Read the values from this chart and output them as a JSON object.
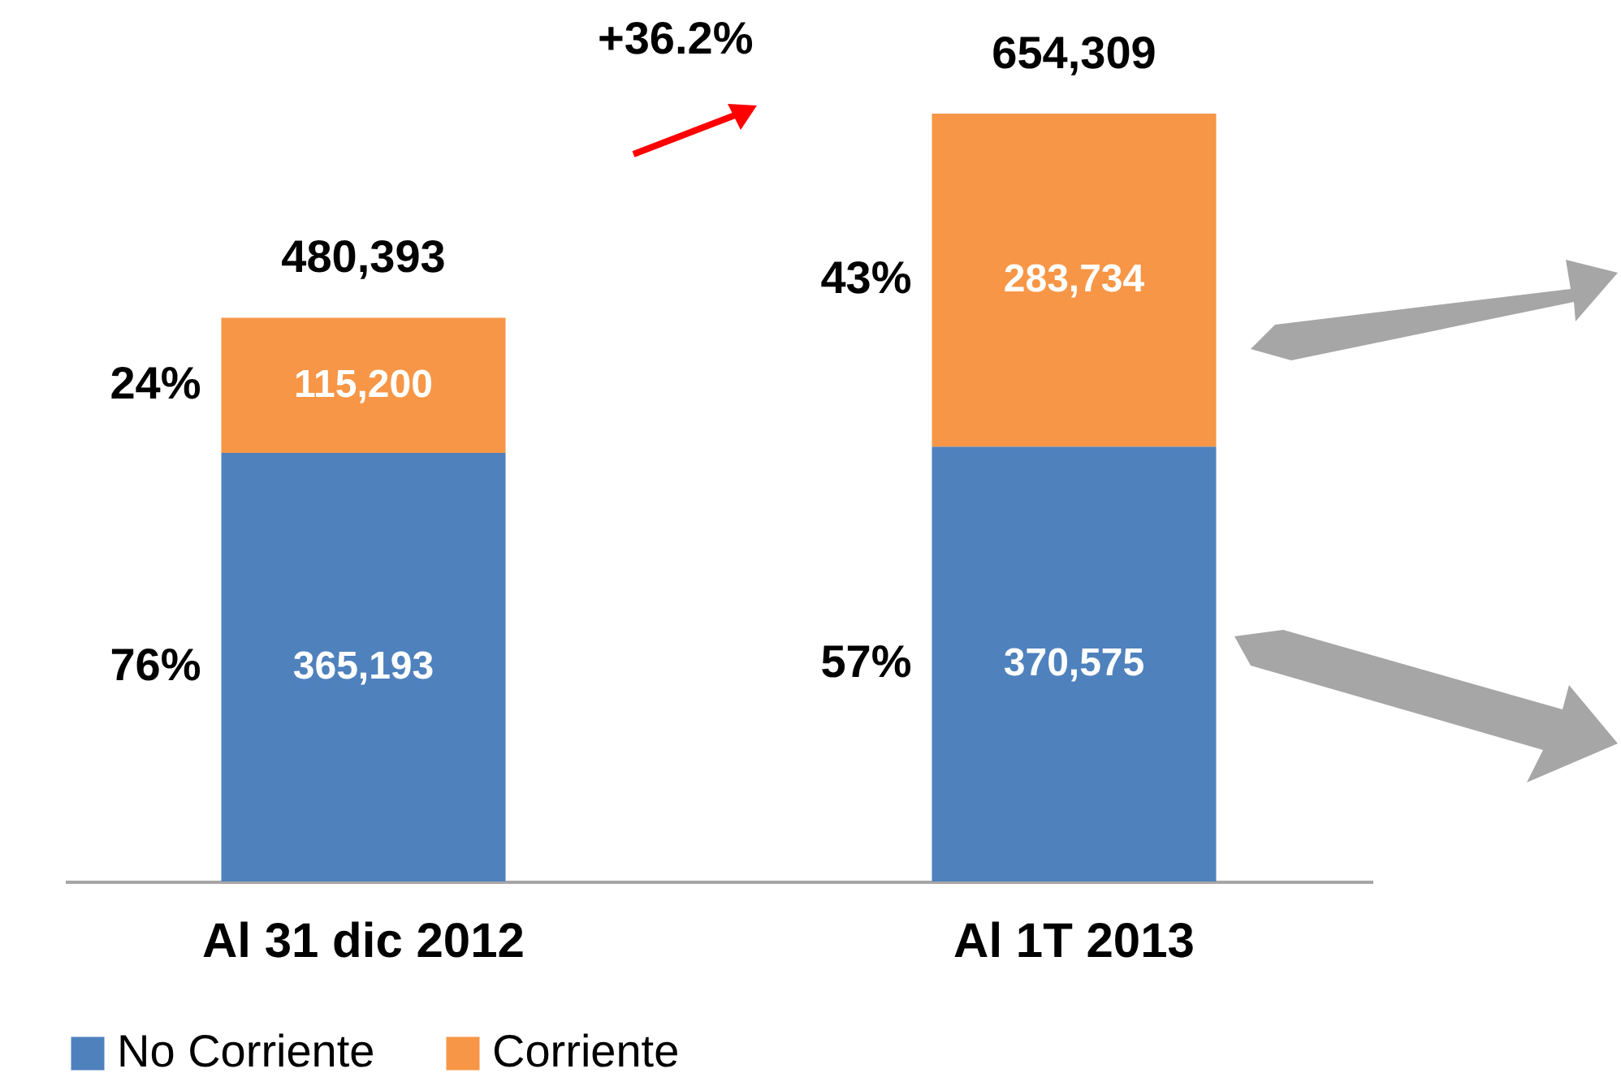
{
  "chart_data": {
    "type": "bar",
    "stacked": true,
    "categories": [
      "Al 31 dic 2012",
      "Al 1T 2013"
    ],
    "series": [
      {
        "name": "No Corriente",
        "color": "#4f81bd",
        "values": [
          365193,
          370575
        ],
        "value_labels": [
          "365,193",
          "370,575"
        ]
      },
      {
        "name": "Corriente",
        "color": "#f79646",
        "values": [
          115200,
          283734
        ],
        "value_labels": [
          "115,200",
          "283,734"
        ]
      }
    ],
    "totals": [
      "480,393",
      "654,309"
    ],
    "legend": "bottom",
    "grid": false,
    "annotations": [
      "76%",
      "24%",
      "57%",
      "43%",
      "+36.2%"
    ]
  }
}
